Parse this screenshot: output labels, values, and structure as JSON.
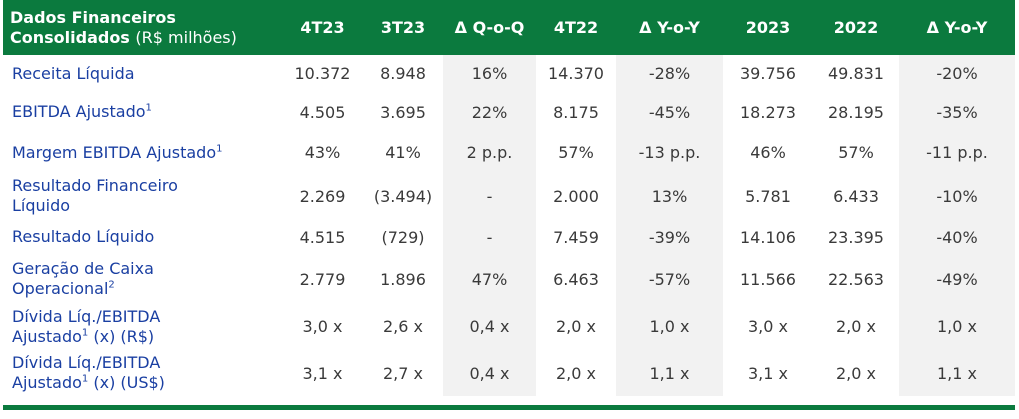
{
  "header": {
    "first_line1": "Dados Financeiros",
    "first_bold": "Consolidados",
    "first_unit": "(R$ milhões)",
    "columns": [
      "4T23",
      "3T23",
      "Δ Q-o-Q",
      "4T22",
      "Δ Y-o-Y",
      "2023",
      "2022",
      "Δ Y-o-Y"
    ]
  },
  "rows": [
    {
      "label": "Receita Líquida",
      "sup": "",
      "label2": "",
      "sup2": "",
      "label2_tail": "",
      "values": [
        "10.372",
        "8.948",
        "16%",
        "14.370",
        "-28%",
        "39.756",
        "49.831",
        "-20%"
      ]
    },
    {
      "label": "EBITDA Ajustado",
      "sup": "1",
      "label2": "",
      "sup2": "",
      "label2_tail": "",
      "values": [
        "4.505",
        "3.695",
        "22%",
        "8.175",
        "-45%",
        "18.273",
        "28.195",
        "-35%"
      ]
    },
    {
      "label": "Margem EBITDA Ajustado",
      "sup": "1",
      "label2": "",
      "sup2": "",
      "label2_tail": "",
      "values": [
        "43%",
        "41%",
        "2 p.p.",
        "57%",
        "-13 p.p.",
        "46%",
        "57%",
        "-11 p.p."
      ]
    },
    {
      "label": "Resultado Financeiro",
      "sup": "",
      "label2": "Líquido",
      "sup2": "",
      "label2_tail": "",
      "values": [
        "2.269",
        "(3.494)",
        "-",
        "2.000",
        "13%",
        "5.781",
        "6.433",
        "-10%"
      ]
    },
    {
      "label": "Resultado Líquido",
      "sup": "",
      "label2": "",
      "sup2": "",
      "label2_tail": "",
      "values": [
        "4.515",
        "(729)",
        "-",
        "7.459",
        "-39%",
        "14.106",
        "23.395",
        "-40%"
      ]
    },
    {
      "label": "Geração de Caixa",
      "sup": "",
      "label2": "Operacional",
      "sup2": "2",
      "label2_tail": "",
      "values": [
        "2.779",
        "1.896",
        "47%",
        "6.463",
        "-57%",
        "11.566",
        "22.563",
        "-49%"
      ]
    },
    {
      "label": "Dívida Líq./EBITDA",
      "sup": "",
      "label2": "Ajustado",
      "sup2": "1",
      "label2_tail": " (x) (R$)",
      "values": [
        "3,0 x",
        "2,6 x",
        "0,4 x",
        "2,0 x",
        "1,0 x",
        "3,0 x",
        "2,0 x",
        "1,0 x"
      ]
    },
    {
      "label": "Dívida Líq./EBITDA",
      "sup": "",
      "label2": "Ajustado",
      "sup2": "1",
      "label2_tail": " (x) (US$)",
      "values": [
        "3,1 x",
        "2,7 x",
        "0,4 x",
        "2,0 x",
        "1,1 x",
        "3,1 x",
        "2,0 x",
        "1,1 x"
      ]
    }
  ],
  "colors": {
    "header_bg": "#0b7a3e",
    "label_text": "#1a3fa2",
    "shade": "#f2f2f2"
  }
}
